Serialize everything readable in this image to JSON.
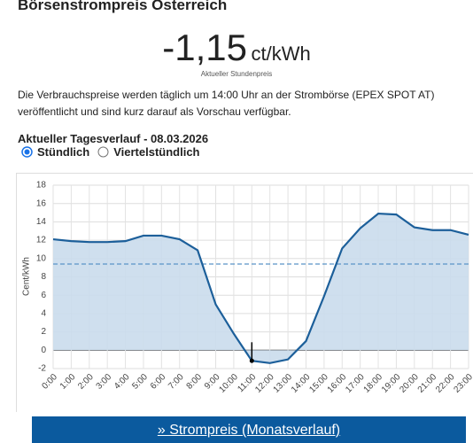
{
  "header": {
    "title": "Börsenstrompreis Österreich"
  },
  "price": {
    "value": "-1,15",
    "unit": "ct/kWh",
    "caption": "Aktueller Stundenpreis"
  },
  "description": "Die Verbrauchspreise werden täglich um 14:00 Uhr an der Strombörse (EPEX SPOT AT) veröffentlicht und sind kurz darauf als Vorschau verfügbar.",
  "section_title": "Aktueller Tagesverlauf - 08.03.2026",
  "options": [
    {
      "label": "Stündlich",
      "selected": true
    },
    {
      "label": "Viertelstündlich",
      "selected": false
    }
  ],
  "chart_data": {
    "type": "area",
    "y_label": "Cent/kWh",
    "categories": [
      "0:00",
      "1:00",
      "2:00",
      "3:00",
      "4:00",
      "5:00",
      "6:00",
      "7:00",
      "8:00",
      "9:00",
      "10:00",
      "11:00",
      "12:00",
      "13:00",
      "14:00",
      "15:00",
      "16:00",
      "17:00",
      "18:00",
      "19:00",
      "20:00",
      "21:00",
      "22:00",
      "23:00"
    ],
    "values": [
      12.1,
      11.9,
      11.8,
      11.8,
      11.9,
      12.5,
      12.5,
      12.1,
      10.9,
      5.0,
      1.8,
      -1.15,
      -1.4,
      -1.0,
      1.0,
      5.9,
      11.1,
      13.3,
      14.9,
      14.8,
      13.4,
      13.1,
      13.1,
      12.6
    ],
    "color": "#1c5f9a",
    "fill": "#cadcec",
    "highlight_index": 11,
    "mean_line": 9.4,
    "ylim": [
      -2,
      18
    ],
    "yticks": [
      -2,
      0,
      2,
      4,
      6,
      8,
      10,
      12,
      14,
      16,
      18
    ],
    "grid": true
  },
  "button": {
    "label": "» Strompreis (Monatsverlauf)"
  }
}
